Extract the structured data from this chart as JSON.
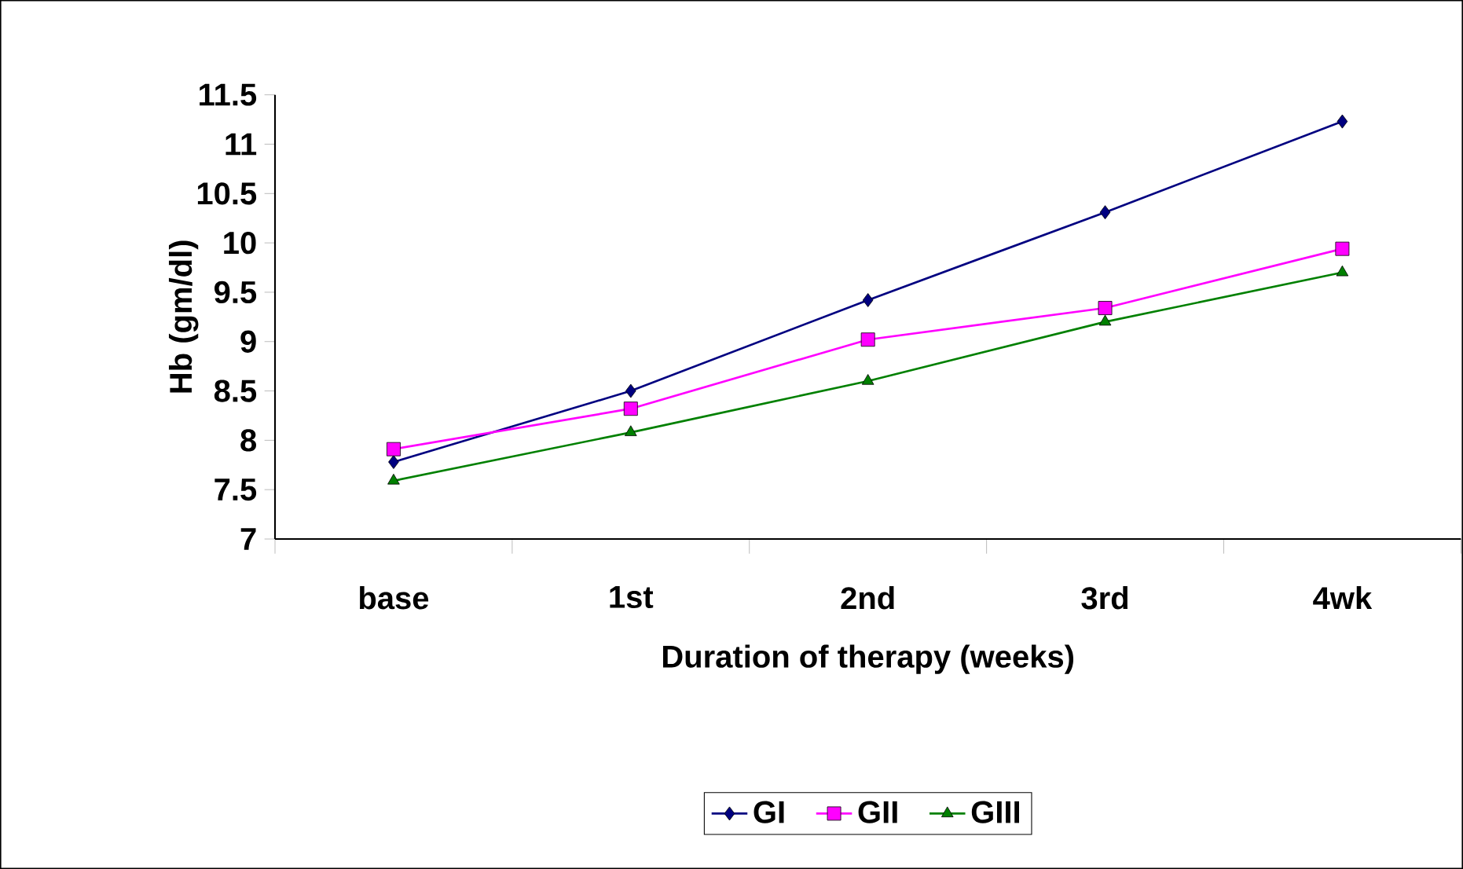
{
  "chart_data": {
    "type": "line",
    "xlabel": "Duration of therapy (weeks)",
    "ylabel": "Hb (gm/dl)",
    "categories": [
      "base",
      "1st",
      "2nd",
      "3rd",
      "4wk"
    ],
    "series": [
      {
        "name": "GI",
        "color": "#000080",
        "marker": "diamond",
        "values": [
          7.78,
          8.5,
          9.42,
          10.31,
          11.23
        ]
      },
      {
        "name": "GII",
        "color": "#ff00ff",
        "marker": "square",
        "values": [
          7.91,
          8.32,
          9.02,
          9.34,
          9.94
        ]
      },
      {
        "name": "GIII",
        "color": "#008000",
        "marker": "triangle",
        "values": [
          7.59,
          8.08,
          8.6,
          9.2,
          9.7
        ]
      }
    ],
    "ylim": [
      7,
      11.5
    ],
    "yticks": [
      7,
      7.5,
      8,
      8.5,
      9,
      9.5,
      10,
      10.5,
      11,
      11.5
    ],
    "grid": false,
    "legend": "bottom",
    "line_style": "solid"
  }
}
